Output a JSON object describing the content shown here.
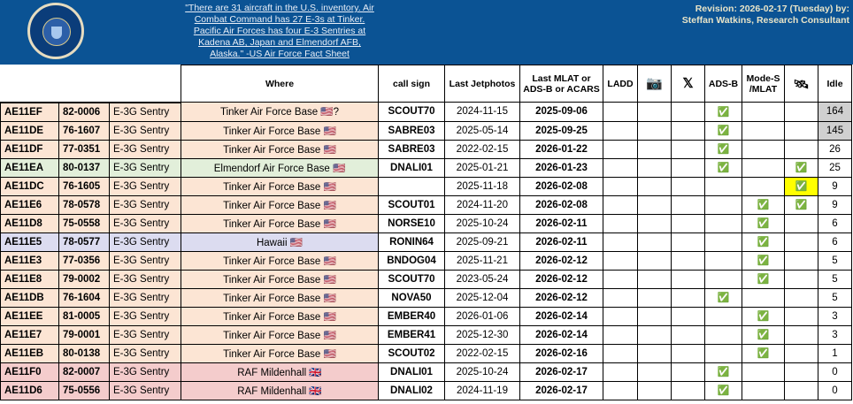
{
  "header": {
    "quote": "\"There are 31 aircraft in the U.S. inventory. Air Combat Command has 27 E-3s at Tinker. Pacific Air Forces has four E-3 Sentries at Kadena AB, Japan and Elmendorf AFB, Alaska.\" -US Air Force Fact Sheet",
    "revision": "Revision: 2026-02-17 (Tuesday) by:",
    "author": "Steffan Watkins, Research Consultant",
    "logo": "DEPARTMENT OF THE AIR FORCE - UNITED STATES OF AMERICA"
  },
  "columns": [
    "",
    "",
    "",
    "Where",
    "call sign",
    "Last Jetphotos",
    "Last MLAT or ADS-B or ACARS",
    "LADD",
    "📷",
    "𝕏",
    "ADS-B",
    "Mode-S /MLAT",
    "🛰",
    "Idle"
  ],
  "column_icons": {
    "camera": "camera-icon",
    "x": "x-logo-icon",
    "satellite": "satellite-icon"
  },
  "colors": {
    "banner": "#0b5394",
    "tinker": "#fce5d4",
    "elmendorf": "#e2efda",
    "hawaii": "#dcdcf0",
    "mildenhall": "#f4cccc",
    "highlight": "#ffff00",
    "idle_high": "#d0d0d0"
  },
  "rows": [
    {
      "hex": "AE11EF",
      "serial": "82-0006",
      "type": "E-3G Sentry",
      "where": "Tinker Air Force Base 🇺🇸?",
      "base": "tinker",
      "callsign": "SCOUT70",
      "jetphotos": "2024-11-15",
      "last": "2025-09-06",
      "adsb": "✅",
      "modes": "",
      "sat": "",
      "idle": "164",
      "idle_high": true
    },
    {
      "hex": "AE11DE",
      "serial": "76-1607",
      "type": "E-3G Sentry",
      "where": "Tinker Air Force Base 🇺🇸",
      "base": "tinker",
      "callsign": "SABRE03",
      "jetphotos": "2025-05-14",
      "last": "2025-09-25",
      "adsb": "✅",
      "modes": "",
      "sat": "",
      "idle": "145",
      "idle_high": true
    },
    {
      "hex": "AE11DF",
      "serial": "77-0351",
      "type": "E-3G Sentry",
      "where": "Tinker Air Force Base 🇺🇸",
      "base": "tinker",
      "callsign": "SABRE03",
      "jetphotos": "2022-02-15",
      "last": "2026-01-22",
      "adsb": "✅",
      "modes": "",
      "sat": "",
      "idle": "26"
    },
    {
      "hex": "AE11EA",
      "serial": "80-0137",
      "type": "E-3G Sentry",
      "where": "Elmendorf Air Force Base 🇺🇸",
      "base": "elmendorf",
      "callsign": "DNALI01",
      "jetphotos": "2025-01-21",
      "last": "2026-01-23",
      "adsb": "✅",
      "modes": "",
      "sat": "✅",
      "idle": "25"
    },
    {
      "hex": "AE11DC",
      "serial": "76-1605",
      "type": "E-3G Sentry",
      "where": "Tinker Air Force Base 🇺🇸",
      "base": "tinker",
      "callsign": "",
      "jetphotos": "2025-11-18",
      "last": "2026-02-08",
      "adsb": "",
      "modes": "",
      "sat": "✅",
      "sat_high": true,
      "idle": "9"
    },
    {
      "hex": "AE11E6",
      "serial": "78-0578",
      "type": "E-3G Sentry",
      "where": "Tinker Air Force Base 🇺🇸",
      "base": "tinker",
      "callsign": "SCOUT01",
      "jetphotos": "2024-11-20",
      "last": "2026-02-08",
      "adsb": "",
      "modes": "✅",
      "sat": "✅",
      "idle": "9"
    },
    {
      "hex": "AE11D8",
      "serial": "75-0558",
      "type": "E-3G Sentry",
      "where": "Tinker Air Force Base 🇺🇸",
      "base": "tinker",
      "callsign": "NORSE10",
      "jetphotos": "2025-10-24",
      "last": "2026-02-11",
      "adsb": "",
      "modes": "✅",
      "sat": "",
      "idle": "6"
    },
    {
      "hex": "AE11E5",
      "serial": "78-0577",
      "type": "E-3G Sentry",
      "where": "Hawaii 🇺🇸",
      "base": "hawaii",
      "callsign": "RONIN64",
      "jetphotos": "2025-09-21",
      "last": "2026-02-11",
      "adsb": "",
      "modes": "✅",
      "sat": "",
      "idle": "6"
    },
    {
      "hex": "AE11E3",
      "serial": "77-0356",
      "type": "E-3G Sentry",
      "where": "Tinker Air Force Base 🇺🇸",
      "base": "tinker",
      "callsign": "BNDOG04",
      "jetphotos": "2025-11-21",
      "last": "2026-02-12",
      "adsb": "",
      "modes": "✅",
      "sat": "",
      "idle": "5"
    },
    {
      "hex": "AE11E8",
      "serial": "79-0002",
      "type": "E-3G Sentry",
      "where": "Tinker Air Force Base 🇺🇸",
      "base": "tinker",
      "callsign": "SCOUT70",
      "jetphotos": "2023-05-24",
      "last": "2026-02-12",
      "adsb": "",
      "modes": "✅",
      "sat": "",
      "idle": "5"
    },
    {
      "hex": "AE11DB",
      "serial": "76-1604",
      "type": "E-3G Sentry",
      "where": "Tinker Air Force Base 🇺🇸",
      "base": "tinker",
      "callsign": "NOVA50",
      "jetphotos": "2025-12-04",
      "last": "2026-02-12",
      "adsb": "✅",
      "modes": "",
      "sat": "",
      "idle": "5"
    },
    {
      "hex": "AE11EE",
      "serial": "81-0005",
      "type": "E-3G Sentry",
      "where": "Tinker Air Force Base 🇺🇸",
      "base": "tinker",
      "callsign": "EMBER40",
      "jetphotos": "2026-01-06",
      "last": "2026-02-14",
      "adsb": "",
      "modes": "✅",
      "sat": "",
      "idle": "3"
    },
    {
      "hex": "AE11E7",
      "serial": "79-0001",
      "type": "E-3G Sentry",
      "where": "Tinker Air Force Base 🇺🇸",
      "base": "tinker",
      "callsign": "EMBER41",
      "jetphotos": "2025-12-30",
      "last": "2026-02-14",
      "adsb": "",
      "modes": "✅",
      "sat": "",
      "idle": "3"
    },
    {
      "hex": "AE11EB",
      "serial": "80-0138",
      "type": "E-3G Sentry",
      "where": "Tinker Air Force Base 🇺🇸",
      "base": "tinker",
      "callsign": "SCOUT02",
      "jetphotos": "2022-02-15",
      "last": "2026-02-16",
      "adsb": "",
      "modes": "✅",
      "sat": "",
      "idle": "1"
    },
    {
      "hex": "AE11F0",
      "serial": "82-0007",
      "type": "E-3G Sentry",
      "where": "RAF Mildenhall 🇬🇧",
      "base": "mildenhall",
      "callsign": "DNALI01",
      "jetphotos": "2025-10-24",
      "last": "2026-02-17",
      "adsb": "✅",
      "modes": "",
      "sat": "",
      "idle": "0"
    },
    {
      "hex": "AE11D6",
      "serial": "75-0556",
      "type": "E-3G Sentry",
      "where": "RAF Mildenhall 🇬🇧",
      "base": "mildenhall",
      "callsign": "DNALI02",
      "jetphotos": "2024-11-19",
      "last": "2026-02-17",
      "adsb": "✅",
      "modes": "",
      "sat": "",
      "idle": "0"
    }
  ]
}
